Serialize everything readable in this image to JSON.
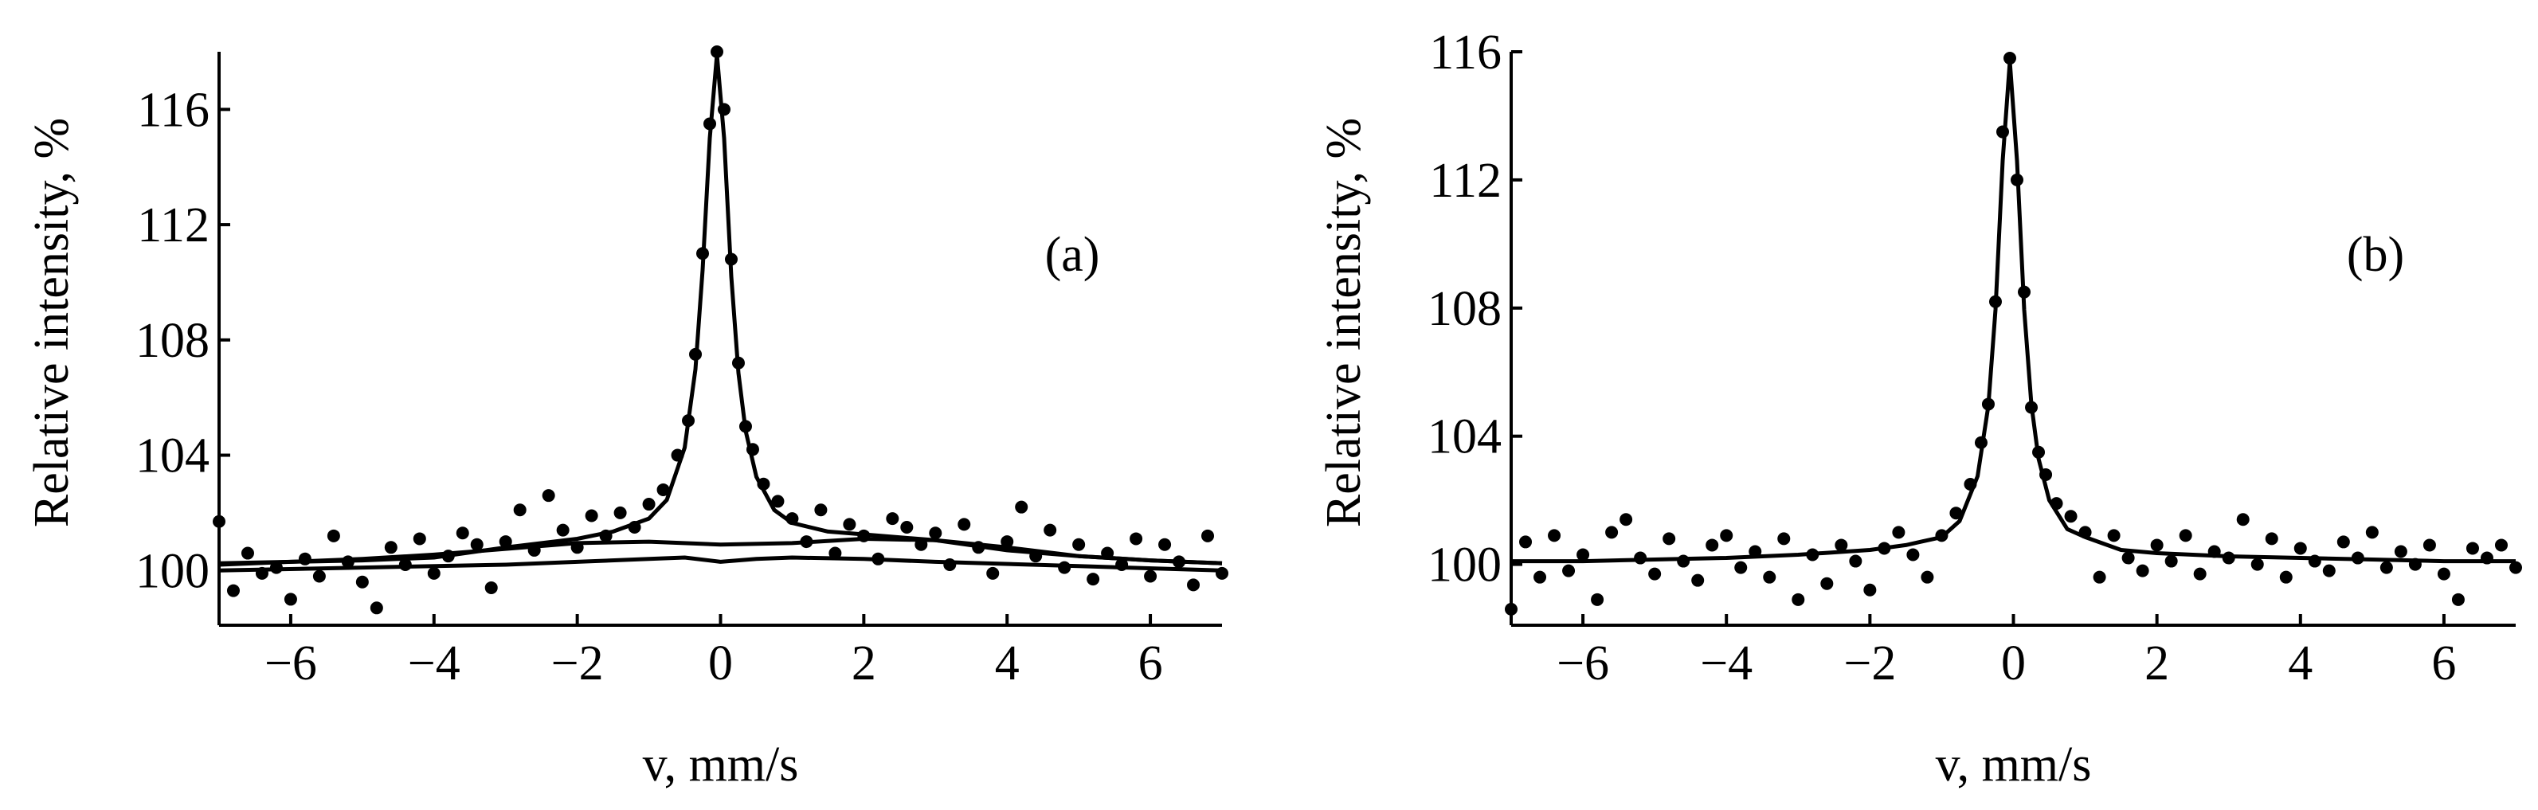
{
  "chart_data": [
    {
      "type": "scatter",
      "annotation": "(a)",
      "x_label": "v, mm/s",
      "y_label": "Relative intensity, %",
      "xlim": [
        -7,
        7
      ],
      "ylim": [
        98.1,
        118
      ],
      "xticks": [
        {
          "value": -6,
          "label": "−6"
        },
        {
          "value": -4,
          "label": "−4"
        },
        {
          "value": -2,
          "label": "−2"
        },
        0,
        2,
        4,
        6
      ],
      "yticks": [
        100,
        104,
        108,
        112,
        116
      ],
      "series": [
        {
          "mode": "markers",
          "color": "#000000",
          "x": [
            -7,
            -6.8,
            -6.6,
            -6.4,
            -6.2,
            -6,
            -5.8,
            -5.6,
            -5.4,
            -5.2,
            -5,
            -4.8,
            -4.6,
            -4.4,
            -4.2,
            -4,
            -3.8,
            -3.6,
            -3.4,
            -3.2,
            -3,
            -2.8,
            -2.6,
            -2.4,
            -2.2,
            -2,
            -1.8,
            -1.6,
            -1.4,
            -1.2,
            -1,
            -0.8,
            -0.6,
            -0.45,
            -0.35,
            -0.25,
            -0.15,
            -0.05,
            0.05,
            0.15,
            0.25,
            0.35,
            0.45,
            0.6,
            0.8,
            1,
            1.2,
            1.4,
            1.6,
            1.8,
            2,
            2.2,
            2.4,
            2.6,
            2.8,
            3,
            3.2,
            3.4,
            3.6,
            3.8,
            4,
            4.2,
            4.4,
            4.6,
            4.8,
            5,
            5.2,
            5.4,
            5.6,
            5.8,
            6,
            6.2,
            6.4,
            6.6,
            6.8,
            7
          ],
          "values": [
            101.7,
            99.3,
            100.6,
            99.9,
            100.1,
            99.0,
            100.4,
            99.8,
            101.2,
            100.3,
            99.6,
            98.7,
            100.8,
            100.2,
            101.1,
            99.9,
            100.5,
            101.3,
            100.9,
            99.4,
            101.0,
            102.1,
            100.7,
            102.6,
            101.4,
            100.8,
            101.9,
            101.2,
            102.0,
            101.5,
            102.3,
            102.8,
            104.0,
            105.2,
            107.5,
            111.0,
            115.5,
            118.0,
            116.0,
            110.8,
            107.2,
            105.0,
            104.2,
            103.0,
            102.4,
            101.8,
            101.0,
            102.1,
            100.6,
            101.6,
            101.2,
            100.4,
            101.8,
            101.5,
            100.9,
            101.3,
            100.2,
            101.6,
            100.8,
            99.9,
            101.0,
            102.2,
            100.5,
            101.4,
            100.1,
            100.9,
            99.7,
            100.6,
            100.2,
            101.1,
            99.8,
            100.9,
            100.3,
            99.5,
            101.2,
            99.9
          ]
        },
        {
          "mode": "line",
          "color": "#000000",
          "x": [
            -7,
            -6,
            -5,
            -4,
            -3,
            -2,
            -1.5,
            -1,
            -0.75,
            -0.5,
            -0.35,
            -0.25,
            -0.15,
            -0.05,
            0.05,
            0.15,
            0.25,
            0.35,
            0.5,
            0.75,
            1,
            1.5,
            2,
            3,
            4,
            5,
            6,
            7
          ],
          "values": [
            100.25,
            100.3,
            100.35,
            100.45,
            100.8,
            101.1,
            101.35,
            101.8,
            102.45,
            104.26,
            106.98,
            110.43,
            115.0,
            117.9,
            115.0,
            110.2,
            106.85,
            104.85,
            103.25,
            102.1,
            101.65,
            101.35,
            101.25,
            101.05,
            100.7,
            100.5,
            100.35,
            100.25
          ]
        },
        {
          "mode": "line",
          "color": "#000000",
          "x": [
            -7,
            -6,
            -5,
            -4,
            -3,
            -2,
            -1,
            0,
            1,
            2,
            3,
            4,
            5,
            6,
            7
          ],
          "values": [
            100.2,
            100.3,
            100.4,
            100.55,
            100.75,
            100.95,
            101.0,
            100.9,
            100.95,
            101.1,
            101.05,
            100.8,
            100.5,
            100.35,
            100.25
          ]
        },
        {
          "mode": "line",
          "color": "#000000",
          "x": [
            -7,
            -5,
            -3,
            -2,
            -1,
            -0.5,
            0,
            0.5,
            1,
            2,
            3,
            5,
            7
          ],
          "values": [
            100.0,
            100.1,
            100.2,
            100.3,
            100.4,
            100.45,
            100.3,
            100.4,
            100.45,
            100.4,
            100.3,
            100.15,
            100.0
          ]
        }
      ]
    },
    {
      "type": "scatter",
      "annotation": "(b)",
      "x_label": "v, mm/s",
      "y_label": "Relative intensity, %",
      "xlim": [
        -7,
        7
      ],
      "ylim": [
        98.1,
        116
      ],
      "xticks": [
        {
          "value": -6,
          "label": "−6"
        },
        {
          "value": -4,
          "label": "−4"
        },
        {
          "value": -2,
          "label": "−2"
        },
        0,
        2,
        4,
        6
      ],
      "yticks": [
        100,
        104,
        108,
        112,
        116
      ],
      "series": [
        {
          "mode": "markers",
          "color": "#000000",
          "x": [
            -7,
            -6.8,
            -6.6,
            -6.4,
            -6.2,
            -6,
            -5.8,
            -5.6,
            -5.4,
            -5.2,
            -5,
            -4.8,
            -4.6,
            -4.4,
            -4.2,
            -4,
            -3.8,
            -3.6,
            -3.4,
            -3.2,
            -3,
            -2.8,
            -2.6,
            -2.4,
            -2.2,
            -2,
            -1.8,
            -1.6,
            -1.4,
            -1.2,
            -1,
            -0.8,
            -0.6,
            -0.45,
            -0.35,
            -0.25,
            -0.15,
            -0.05,
            0.05,
            0.15,
            0.25,
            0.35,
            0.45,
            0.6,
            0.8,
            1,
            1.2,
            1.4,
            1.6,
            1.8,
            2,
            2.2,
            2.4,
            2.6,
            2.8,
            3,
            3.2,
            3.4,
            3.6,
            3.8,
            4,
            4.2,
            4.4,
            4.6,
            4.8,
            5,
            5.2,
            5.4,
            5.6,
            5.8,
            6,
            6.2,
            6.4,
            6.6,
            6.8,
            7
          ],
          "values": [
            98.6,
            100.7,
            99.6,
            100.9,
            99.8,
            100.3,
            98.9,
            101.0,
            101.4,
            100.2,
            99.7,
            100.8,
            100.1,
            99.5,
            100.6,
            100.9,
            99.9,
            100.4,
            99.6,
            100.8,
            98.9,
            100.3,
            99.4,
            100.6,
            100.1,
            99.2,
            100.5,
            101.0,
            100.3,
            99.6,
            100.9,
            101.6,
            102.5,
            103.8,
            105.0,
            108.2,
            113.5,
            115.8,
            112.0,
            108.5,
            104.9,
            103.5,
            102.8,
            101.9,
            101.5,
            101.0,
            99.6,
            100.9,
            100.2,
            99.8,
            100.6,
            100.1,
            100.9,
            99.7,
            100.4,
            100.2,
            101.4,
            100.0,
            100.8,
            99.6,
            100.5,
            100.1,
            99.8,
            100.7,
            100.2,
            101.0,
            99.9,
            100.4,
            100.0,
            100.6,
            99.7,
            98.9,
            100.5,
            100.2,
            100.6,
            99.9
          ]
        },
        {
          "mode": "line",
          "color": "#000000",
          "x": [
            -7,
            -6,
            -5,
            -4,
            -3,
            -2,
            -1.5,
            -1,
            -0.75,
            -0.5,
            -0.35,
            -0.25,
            -0.15,
            -0.05,
            0.05,
            0.15,
            0.25,
            0.35,
            0.5,
            0.75,
            1,
            1.5,
            2,
            3,
            4,
            5,
            6,
            7
          ],
          "values": [
            100.1,
            100.1,
            100.15,
            100.2,
            100.3,
            100.45,
            100.6,
            100.85,
            101.35,
            102.75,
            104.95,
            107.95,
            112.6,
            115.7,
            112.6,
            107.95,
            105.0,
            103.3,
            102.0,
            101.1,
            100.85,
            100.45,
            100.35,
            100.25,
            100.2,
            100.15,
            100.1,
            100.1
          ]
        }
      ]
    }
  ]
}
